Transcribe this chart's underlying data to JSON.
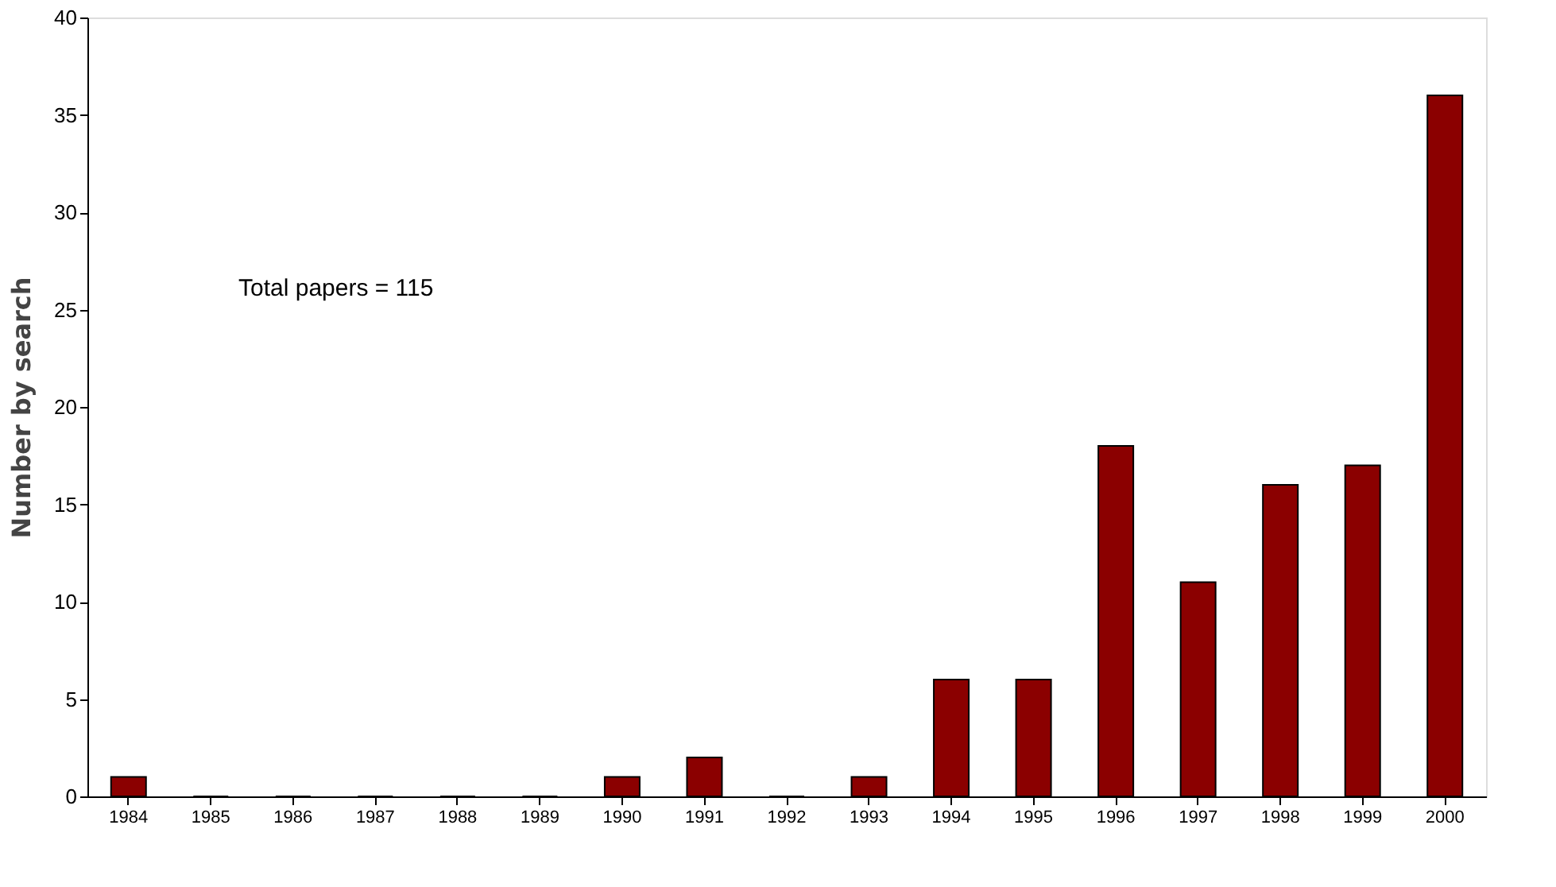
{
  "chart_data": {
    "type": "bar",
    "ylabel": "Number by search",
    "categories": [
      "1984",
      "1985",
      "1986",
      "1987",
      "1988",
      "1989",
      "1990",
      "1991",
      "1992",
      "1993",
      "1994",
      "1995",
      "1996",
      "1997",
      "1998",
      "1999",
      "2000"
    ],
    "values": [
      1,
      0,
      0,
      0,
      0,
      0,
      1,
      2,
      0,
      1,
      6,
      6,
      18,
      11,
      16,
      17,
      36
    ],
    "color": "#8b0000",
    "ylim": [
      0,
      40
    ],
    "yticks": [
      0,
      5,
      10,
      15,
      20,
      25,
      30,
      35,
      40
    ],
    "grid": false,
    "annotations": [
      "Total papers = 115"
    ]
  }
}
